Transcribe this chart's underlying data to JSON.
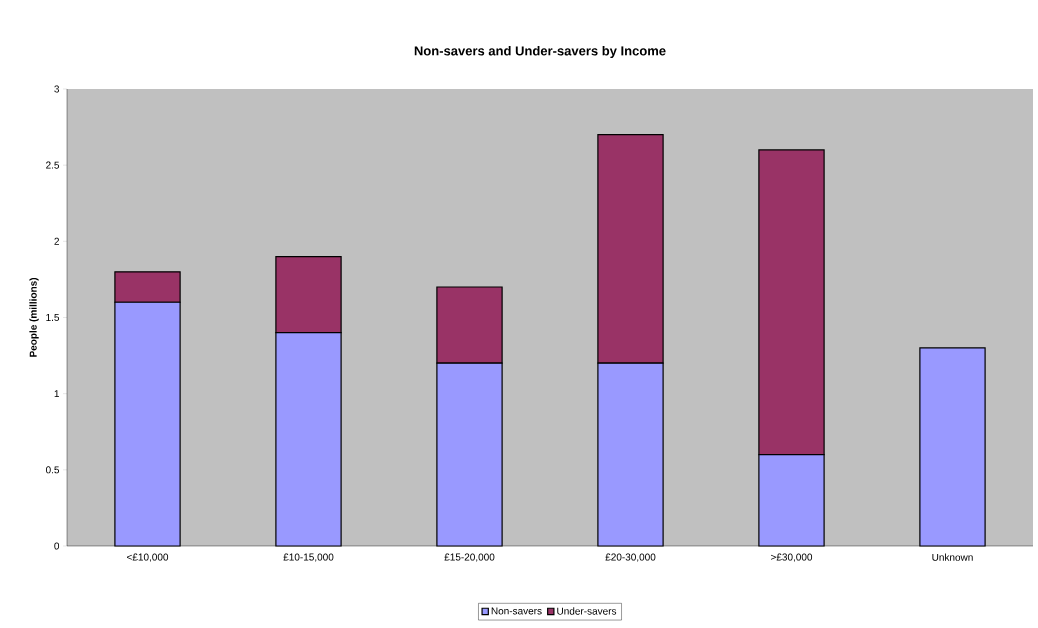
{
  "chart_data": {
    "type": "bar",
    "title": "Non-savers and Under-savers by Income",
    "ylabel": "People (millions)",
    "categories": [
      "<£10,000",
      "£10-15,000",
      "£15-20,000",
      "£20-30,000",
      ">£30,000",
      "Unknown"
    ],
    "series": [
      {
        "name": "Non-savers",
        "color": "#9999ff",
        "values": [
          1.6,
          1.4,
          1.2,
          1.2,
          0.6,
          1.3
        ]
      },
      {
        "name": "Under-savers",
        "color": "#993366",
        "values": [
          0.2,
          0.5,
          0.5,
          1.5,
          2.0,
          null
        ]
      }
    ],
    "stacked": true,
    "ylim": [
      0,
      3
    ],
    "yticks": [
      0,
      0.5,
      1,
      1.5,
      2,
      2.5,
      3
    ],
    "grid": false,
    "legend": "bottom"
  }
}
